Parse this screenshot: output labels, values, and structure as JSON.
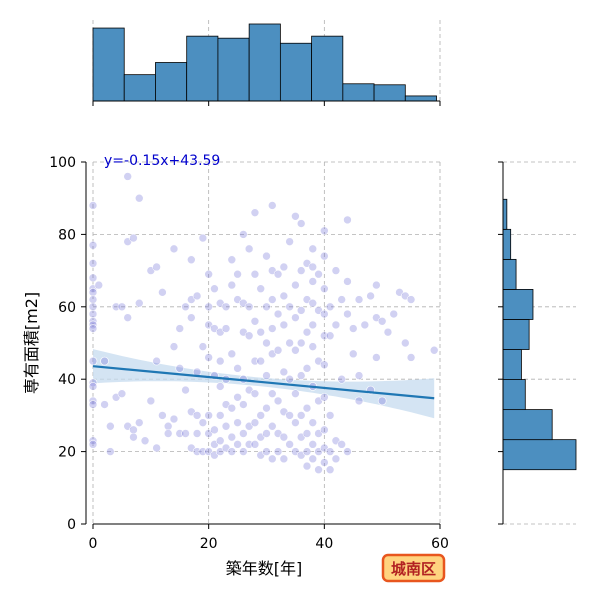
{
  "chart_data": {
    "type": "scatter",
    "xlabel": "築年数[年]",
    "ylabel": "専有面積[m2]",
    "xlim": [
      0,
      60
    ],
    "ylim": [
      0,
      100
    ],
    "x_ticks": [
      0,
      20,
      40,
      60
    ],
    "y_ticks": [
      0,
      20,
      40,
      60,
      80,
      100
    ],
    "grid": true,
    "regression": {
      "equation": "y=-0.15x+43.59",
      "slope": -0.15,
      "intercept": 43.59,
      "color": "#1f77b4",
      "ci_color": "#c6dbef"
    },
    "point_color": "#6f6fd8",
    "points": [
      [
        0,
        88
      ],
      [
        0,
        77
      ],
      [
        0,
        72
      ],
      [
        0,
        68
      ],
      [
        0,
        65
      ],
      [
        0,
        64
      ],
      [
        0,
        62
      ],
      [
        0,
        60
      ],
      [
        0,
        58
      ],
      [
        0,
        56
      ],
      [
        0,
        55
      ],
      [
        0,
        54
      ],
      [
        0,
        45
      ],
      [
        0,
        39
      ],
      [
        0,
        38
      ],
      [
        0,
        34
      ],
      [
        0,
        33
      ],
      [
        0,
        23
      ],
      [
        0,
        22
      ],
      [
        1,
        66
      ],
      [
        2,
        33
      ],
      [
        2,
        45
      ],
      [
        3,
        20
      ],
      [
        3,
        27
      ],
      [
        4,
        60
      ],
      [
        4,
        35
      ],
      [
        5,
        36
      ],
      [
        5,
        60
      ],
      [
        6,
        96
      ],
      [
        6,
        78
      ],
      [
        6,
        57
      ],
      [
        6,
        27
      ],
      [
        7,
        79
      ],
      [
        7,
        26
      ],
      [
        7,
        24
      ],
      [
        8,
        90
      ],
      [
        8,
        61
      ],
      [
        8,
        28
      ],
      [
        9,
        23
      ],
      [
        10,
        70
      ],
      [
        10,
        34
      ],
      [
        11,
        71
      ],
      [
        11,
        45
      ],
      [
        11,
        21
      ],
      [
        12,
        64
      ],
      [
        12,
        30
      ],
      [
        13,
        27
      ],
      [
        13,
        25
      ],
      [
        14,
        76
      ],
      [
        14,
        49
      ],
      [
        14,
        29
      ],
      [
        15,
        54
      ],
      [
        15,
        43
      ],
      [
        15,
        25
      ],
      [
        16,
        60
      ],
      [
        16,
        37
      ],
      [
        16,
        25
      ],
      [
        17,
        73
      ],
      [
        17,
        62
      ],
      [
        17,
        57
      ],
      [
        17,
        31
      ],
      [
        17,
        21
      ],
      [
        18,
        63
      ],
      [
        18,
        42
      ],
      [
        18,
        30
      ],
      [
        18,
        25
      ],
      [
        18,
        20
      ],
      [
        19,
        79
      ],
      [
        19,
        49
      ],
      [
        19,
        28
      ],
      [
        19,
        20
      ],
      [
        20,
        69
      ],
      [
        20,
        60
      ],
      [
        20,
        55
      ],
      [
        20,
        46
      ],
      [
        20,
        30
      ],
      [
        20,
        25
      ],
      [
        20,
        20
      ],
      [
        21,
        65
      ],
      [
        21,
        54
      ],
      [
        21,
        41
      ],
      [
        21,
        26
      ],
      [
        21,
        22
      ],
      [
        21,
        19
      ],
      [
        22,
        61
      ],
      [
        22,
        53
      ],
      [
        22,
        45
      ],
      [
        22,
        38
      ],
      [
        22,
        30
      ],
      [
        22,
        23
      ],
      [
        22,
        20
      ],
      [
        23,
        60
      ],
      [
        23,
        54
      ],
      [
        23,
        40
      ],
      [
        23,
        33
      ],
      [
        23,
        27
      ],
      [
        23,
        21
      ],
      [
        24,
        73
      ],
      [
        24,
        66
      ],
      [
        24,
        47
      ],
      [
        24,
        32
      ],
      [
        24,
        24
      ],
      [
        24,
        20
      ],
      [
        25,
        69
      ],
      [
        25,
        62
      ],
      [
        25,
        43
      ],
      [
        25,
        35
      ],
      [
        25,
        28
      ],
      [
        25,
        22
      ],
      [
        26,
        80
      ],
      [
        26,
        61
      ],
      [
        26,
        53
      ],
      [
        26,
        40
      ],
      [
        26,
        33
      ],
      [
        26,
        25
      ],
      [
        26,
        20
      ],
      [
        27,
        76
      ],
      [
        27,
        60
      ],
      [
        27,
        52
      ],
      [
        27,
        37
      ],
      [
        27,
        27
      ],
      [
        27,
        22
      ],
      [
        28,
        86
      ],
      [
        28,
        69
      ],
      [
        28,
        56
      ],
      [
        28,
        45
      ],
      [
        28,
        36
      ],
      [
        28,
        28
      ],
      [
        28,
        22
      ],
      [
        29,
        65
      ],
      [
        29,
        53
      ],
      [
        29,
        45
      ],
      [
        29,
        30
      ],
      [
        29,
        24
      ],
      [
        29,
        19
      ],
      [
        30,
        74
      ],
      [
        30,
        60
      ],
      [
        30,
        50
      ],
      [
        30,
        41
      ],
      [
        30,
        32
      ],
      [
        30,
        25
      ],
      [
        30,
        20
      ],
      [
        31,
        88
      ],
      [
        31,
        70
      ],
      [
        31,
        62
      ],
      [
        31,
        54
      ],
      [
        31,
        47
      ],
      [
        31,
        36
      ],
      [
        31,
        27
      ],
      [
        31,
        18
      ],
      [
        32,
        69
      ],
      [
        32,
        58
      ],
      [
        32,
        48
      ],
      [
        32,
        34
      ],
      [
        32,
        25
      ],
      [
        32,
        20
      ],
      [
        33,
        71
      ],
      [
        33,
        63
      ],
      [
        33,
        55
      ],
      [
        33,
        42
      ],
      [
        33,
        31
      ],
      [
        33,
        24
      ],
      [
        33,
        18
      ],
      [
        34,
        78
      ],
      [
        34,
        60
      ],
      [
        34,
        50
      ],
      [
        34,
        40
      ],
      [
        34,
        30
      ],
      [
        34,
        22
      ],
      [
        35,
        85
      ],
      [
        35,
        66
      ],
      [
        35,
        57
      ],
      [
        35,
        48
      ],
      [
        35,
        36
      ],
      [
        35,
        28
      ],
      [
        35,
        20
      ],
      [
        36,
        83
      ],
      [
        36,
        70
      ],
      [
        36,
        59
      ],
      [
        36,
        50
      ],
      [
        36,
        41
      ],
      [
        36,
        30
      ],
      [
        36,
        24
      ],
      [
        36,
        19
      ],
      [
        37,
        72
      ],
      [
        37,
        62
      ],
      [
        37,
        53
      ],
      [
        37,
        43
      ],
      [
        37,
        32
      ],
      [
        37,
        25
      ],
      [
        37,
        20
      ],
      [
        37,
        16
      ],
      [
        38,
        76
      ],
      [
        38,
        71
      ],
      [
        38,
        67
      ],
      [
        38,
        61
      ],
      [
        38,
        55
      ],
      [
        38,
        49
      ],
      [
        38,
        38
      ],
      [
        38,
        28
      ],
      [
        38,
        22
      ],
      [
        38,
        18
      ],
      [
        39,
        69
      ],
      [
        39,
        59
      ],
      [
        39,
        45
      ],
      [
        39,
        34
      ],
      [
        39,
        25
      ],
      [
        39,
        20
      ],
      [
        39,
        15
      ],
      [
        40,
        81
      ],
      [
        40,
        74
      ],
      [
        40,
        65
      ],
      [
        40,
        58
      ],
      [
        40,
        52
      ],
      [
        40,
        44
      ],
      [
        40,
        35
      ],
      [
        40,
        26
      ],
      [
        40,
        21
      ],
      [
        40,
        17
      ],
      [
        41,
        60
      ],
      [
        41,
        52
      ],
      [
        41,
        30
      ],
      [
        41,
        20
      ],
      [
        41,
        15
      ],
      [
        42,
        70
      ],
      [
        42,
        55
      ],
      [
        42,
        23
      ],
      [
        42,
        18
      ],
      [
        43,
        62
      ],
      [
        43,
        40
      ],
      [
        43,
        22
      ],
      [
        44,
        84
      ],
      [
        44,
        67
      ],
      [
        44,
        58
      ],
      [
        44,
        20
      ],
      [
        45,
        54
      ],
      [
        45,
        47
      ],
      [
        46,
        62
      ],
      [
        46,
        41
      ],
      [
        46,
        34
      ],
      [
        47,
        55
      ],
      [
        48,
        63
      ],
      [
        48,
        37
      ],
      [
        49,
        66
      ],
      [
        49,
        57
      ],
      [
        49,
        46
      ],
      [
        50,
        56
      ],
      [
        50,
        34
      ],
      [
        51,
        53
      ],
      [
        52,
        58
      ],
      [
        53,
        64
      ],
      [
        54,
        50
      ],
      [
        54,
        63
      ],
      [
        55,
        46
      ],
      [
        55,
        62
      ],
      [
        59,
        48
      ]
    ],
    "marginal_x": {
      "type": "histogram",
      "bin_edges": [
        0,
        5.4,
        10.8,
        16.2,
        21.6,
        27,
        32.4,
        37.8,
        43.2,
        48.6,
        54,
        59.4
      ],
      "counts": [
        72,
        26,
        38,
        64,
        62,
        76,
        57,
        64,
        17,
        16,
        5
      ],
      "color": "#4c8fc0"
    },
    "marginal_y": {
      "type": "histogram",
      "bin_edges": [
        15,
        23.3,
        31.6,
        39.9,
        48.2,
        56.5,
        64.8,
        73.1,
        81.4,
        89.7
      ],
      "counts": [
        95,
        64,
        29,
        24,
        34,
        39,
        17,
        10,
        5
      ],
      "color": "#4c8fc0"
    }
  },
  "badge": {
    "text": "城南区",
    "fill": "#ffd37f",
    "border": "#e8561e"
  }
}
